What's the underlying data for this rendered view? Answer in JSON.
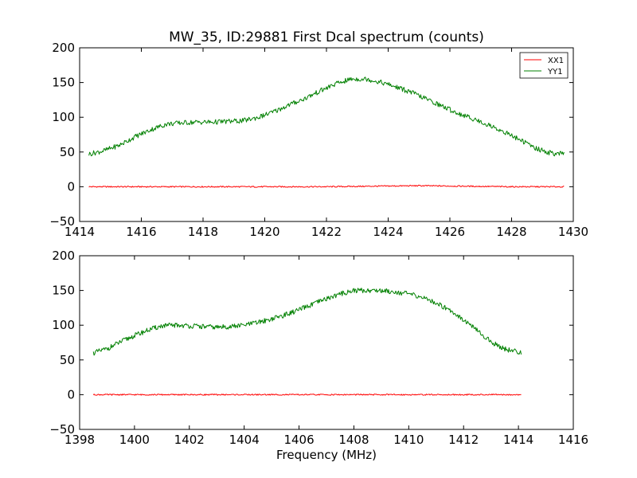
{
  "chart_data": [
    {
      "type": "line",
      "title": "MW_35, ID:29881 First Dcal spectrum (counts)",
      "xlabel": "",
      "ylabel": "",
      "xlim": [
        1414,
        1430
      ],
      "ylim": [
        -50,
        200
      ],
      "xticks": [
        1414,
        1416,
        1418,
        1420,
        1422,
        1424,
        1426,
        1428,
        1430
      ],
      "yticks": [
        -50,
        0,
        50,
        100,
        150,
        200
      ],
      "grid": false,
      "legend": {
        "position": "top-right",
        "entries": [
          "XX1",
          "YY1"
        ]
      },
      "series": [
        {
          "name": "XX1",
          "color": "#ff0000",
          "x": [
            1414.3,
            1415.0,
            1416.0,
            1417.0,
            1418.0,
            1419.0,
            1420.0,
            1421.0,
            1422.0,
            1423.0,
            1424.0,
            1425.0,
            1426.0,
            1427.0,
            1428.0,
            1429.0,
            1429.7
          ],
          "values": [
            0,
            0,
            0,
            0,
            0,
            0,
            0,
            0,
            0,
            0.5,
            1,
            1.5,
            1,
            0.5,
            0,
            0,
            0
          ]
        },
        {
          "name": "YY1",
          "color": "#008000",
          "x": [
            1414.3,
            1414.8,
            1415.3,
            1415.8,
            1416.3,
            1416.8,
            1417.3,
            1417.8,
            1418.3,
            1418.8,
            1419.3,
            1419.8,
            1420.3,
            1420.8,
            1421.3,
            1421.8,
            1422.3,
            1422.8,
            1423.3,
            1423.8,
            1424.3,
            1424.8,
            1425.3,
            1425.8,
            1426.3,
            1426.8,
            1427.3,
            1427.8,
            1428.3,
            1428.8,
            1429.3,
            1429.7
          ],
          "values": [
            47,
            52,
            60,
            72,
            82,
            90,
            92,
            93,
            93,
            94,
            95,
            100,
            108,
            118,
            127,
            138,
            148,
            155,
            155,
            150,
            143,
            135,
            125,
            115,
            105,
            97,
            88,
            78,
            67,
            55,
            48,
            47
          ]
        }
      ]
    },
    {
      "type": "line",
      "title": "",
      "xlabel": "Frequency (MHz)",
      "ylabel": "",
      "xlim": [
        1398,
        1416
      ],
      "ylim": [
        -50,
        200
      ],
      "xticks": [
        1398,
        1400,
        1402,
        1404,
        1406,
        1408,
        1410,
        1412,
        1414,
        1416
      ],
      "yticks": [
        -50,
        0,
        50,
        100,
        150,
        200
      ],
      "grid": false,
      "series": [
        {
          "name": "XX1",
          "color": "#ff0000",
          "x": [
            1398.5,
            1399.5,
            1400.5,
            1401.5,
            1402.5,
            1403.5,
            1404.5,
            1405.5,
            1406.5,
            1407.5,
            1408.5,
            1409.5,
            1410.5,
            1411.5,
            1412.5,
            1413.5,
            1414.1
          ],
          "values": [
            0,
            0,
            0,
            0,
            0,
            0,
            0,
            0,
            0,
            0,
            0,
            0,
            0,
            0,
            0,
            0,
            0
          ]
        },
        {
          "name": "YY1",
          "color": "#008000",
          "x": [
            1398.5,
            1399.0,
            1399.5,
            1400.0,
            1400.5,
            1401.0,
            1401.5,
            1402.0,
            1402.5,
            1403.0,
            1403.5,
            1404.0,
            1404.5,
            1405.0,
            1405.5,
            1406.0,
            1406.5,
            1407.0,
            1407.5,
            1408.0,
            1408.5,
            1409.0,
            1409.5,
            1410.0,
            1410.5,
            1411.0,
            1411.5,
            1412.0,
            1412.5,
            1413.0,
            1413.5,
            1414.1
          ],
          "values": [
            60,
            66,
            76,
            85,
            93,
            99,
            100,
            99,
            98,
            97,
            98,
            100,
            104,
            109,
            115,
            122,
            130,
            138,
            145,
            150,
            150,
            150,
            148,
            145,
            140,
            132,
            122,
            108,
            92,
            76,
            66,
            60
          ]
        }
      ]
    }
  ]
}
